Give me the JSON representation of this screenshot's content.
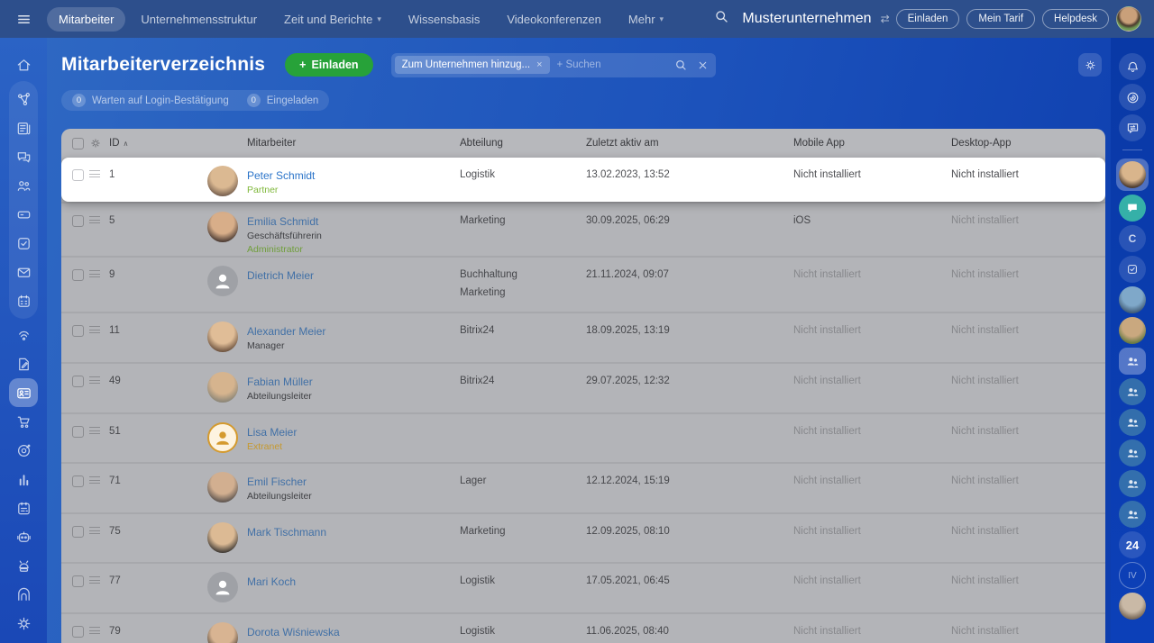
{
  "topbar": {
    "menu_items": [
      {
        "label": "Mitarbeiter",
        "active": true,
        "chevron": false
      },
      {
        "label": "Unternehmensstruktur",
        "active": false,
        "chevron": false
      },
      {
        "label": "Zeit und Berichte",
        "active": false,
        "chevron": true
      },
      {
        "label": "Wissensbasis",
        "active": false,
        "chevron": false
      },
      {
        "label": "Videokonferenzen",
        "active": false,
        "chevron": false
      },
      {
        "label": "Mehr",
        "active": false,
        "chevron": true
      }
    ],
    "company": "Musterunternehmen",
    "actions": [
      "Einladen",
      "Mein Tarif",
      "Helpdesk"
    ]
  },
  "header": {
    "title": "Mitarbeiterverzeichnis",
    "invite_button": "Einladen",
    "invite_plus": "+",
    "filter_chip": "Zum Unternehmen hinzug...",
    "chip_close": "×",
    "search_placeholder": "+ Suchen"
  },
  "counters": [
    {
      "count": "0",
      "label": "Warten auf Login-Bestätigung"
    },
    {
      "count": "0",
      "label": "Eingeladen"
    }
  ],
  "table": {
    "columns": {
      "id": "ID",
      "person": "Mitarbeiter",
      "department": "Abteilung",
      "last_active": "Zuletzt aktiv am",
      "mobile": "Mobile App",
      "desktop": "Desktop-App"
    },
    "sort_indicator": "∧",
    "rows": [
      {
        "id": "1",
        "name": "Peter Schmidt",
        "role": "",
        "badge": "Partner",
        "badge_color": "#7fb73a",
        "departments": [
          "Logistik"
        ],
        "last_active": "13.02.2023, 13:52",
        "mobile": "Nicht installiert",
        "desktop": "Nicht installiert",
        "avatar": {
          "type": "photo",
          "c1": "#dbb992",
          "c2": "#77604f"
        },
        "highlighted": true
      },
      {
        "id": "5",
        "name": "Emilia Schmidt",
        "role": "Geschäftsführerin",
        "badge": "Administrator",
        "badge_color": "#6f9e3a",
        "departments": [
          "Marketing"
        ],
        "last_active": "30.09.2025, 06:29",
        "mobile": "iOS",
        "desktop": "Nicht installiert",
        "avatar": {
          "type": "photo",
          "c1": "#d8ae89",
          "c2": "#4a3a33"
        },
        "highlighted": false
      },
      {
        "id": "9",
        "name": "Dietrich Meier",
        "role": "",
        "badge": "",
        "badge_color": "",
        "departments": [
          "Buchhaltung",
          "Marketing"
        ],
        "last_active": "21.11.2024, 09:07",
        "mobile": "Nicht installiert",
        "desktop": "Nicht installiert",
        "avatar": {
          "type": "placeholder"
        },
        "highlighted": false
      },
      {
        "id": "11",
        "name": "Alexander Meier",
        "role": "Manager",
        "badge": "",
        "badge_color": "",
        "departments": [
          "Bitrix24"
        ],
        "last_active": "18.09.2025, 13:19",
        "mobile": "Nicht installiert",
        "desktop": "Nicht installiert",
        "avatar": {
          "type": "photo",
          "c1": "#e0bd97",
          "c2": "#6d533f"
        },
        "highlighted": false
      },
      {
        "id": "49",
        "name": "Fabian Müller",
        "role": "Abteilungsleiter",
        "badge": "",
        "badge_color": "",
        "departments": [
          "Bitrix24"
        ],
        "last_active": "29.07.2025, 12:32",
        "mobile": "Nicht installiert",
        "desktop": "Nicht installiert",
        "avatar": {
          "type": "photo",
          "c1": "#d6b48e",
          "c2": "#8a8577"
        },
        "highlighted": false
      },
      {
        "id": "51",
        "name": "Lisa Meier",
        "role": "",
        "badge": "Extranet",
        "badge_color": "#c6992f",
        "departments": [],
        "last_active": "",
        "mobile": "Nicht installiert",
        "desktop": "Nicht installiert",
        "avatar": {
          "type": "extranet"
        },
        "highlighted": false
      },
      {
        "id": "71",
        "name": "Emil Fischer",
        "role": "Abteilungsleiter",
        "badge": "",
        "badge_color": "",
        "departments": [
          "Lager"
        ],
        "last_active": "12.12.2024, 15:19",
        "mobile": "Nicht installiert",
        "desktop": "Nicht installiert",
        "avatar": {
          "type": "photo",
          "c1": "#d2af90",
          "c2": "#5e5550"
        },
        "highlighted": false
      },
      {
        "id": "75",
        "name": "Mark Tischmann",
        "role": "",
        "badge": "",
        "badge_color": "",
        "departments": [
          "Marketing"
        ],
        "last_active": "12.09.2025, 08:10",
        "mobile": "Nicht installiert",
        "desktop": "Nicht installiert",
        "avatar": {
          "type": "photo",
          "c1": "#dcba94",
          "c2": "#3f3a35"
        },
        "highlighted": false
      },
      {
        "id": "77",
        "name": "Mari Koch",
        "role": "",
        "badge": "",
        "badge_color": "",
        "departments": [
          "Logistik"
        ],
        "last_active": "17.05.2021, 06:45",
        "mobile": "Nicht installiert",
        "desktop": "Nicht installiert",
        "avatar": {
          "type": "placeholder"
        },
        "highlighted": false
      },
      {
        "id": "79",
        "name": "Dorota Wiśniewska",
        "role": "",
        "badge": "",
        "badge_color": "",
        "departments": [
          "Logistik"
        ],
        "last_active": "11.06.2025, 08:40",
        "mobile": "Nicht installiert",
        "desktop": "Nicht installiert",
        "avatar": {
          "type": "photo",
          "c1": "#d8b492",
          "c2": "#514438"
        },
        "highlighted": false
      }
    ]
  },
  "left_rail": {
    "icons": [
      "home",
      "network",
      "news",
      "chat",
      "people",
      "drive",
      "tasks",
      "mail",
      "calendar",
      "broadcast",
      "document-sign",
      "id-card",
      "cart",
      "crm-target",
      "chart",
      "planner",
      "robot",
      "android",
      "storage",
      "settings"
    ],
    "group_range": [
      1,
      8
    ],
    "active": "id-card"
  },
  "right_rail": {
    "items": [
      {
        "type": "icon",
        "name": "notifications-bell-icon"
      },
      {
        "type": "icon",
        "name": "copilot-icon"
      },
      {
        "type": "icon",
        "name": "messenger-icon"
      },
      {
        "type": "divider",
        "name": "divider"
      },
      {
        "type": "avatar-active",
        "name": "recent-chat-avatar",
        "c1": "#d9b58c",
        "c2": "#4e3d31"
      },
      {
        "type": "chat-teal",
        "name": "chat-bubble-icon"
      },
      {
        "type": "letter",
        "name": "chat-letter",
        "label": "C"
      },
      {
        "type": "check",
        "name": "tasks-chat-icon"
      },
      {
        "type": "photo",
        "name": "chat-avatar",
        "c1": "#7fa8c9",
        "c2": "#44607a"
      },
      {
        "type": "photo",
        "name": "chat-avatar",
        "c1": "#c9a87f",
        "c2": "#6a7a44"
      },
      {
        "type": "group-square",
        "name": "group-chat-icon"
      },
      {
        "type": "group",
        "name": "group-chat-icon"
      },
      {
        "type": "group",
        "name": "group-chat-icon"
      },
      {
        "type": "group",
        "name": "group-chat-icon"
      },
      {
        "type": "group",
        "name": "group-chat-icon"
      },
      {
        "type": "group",
        "name": "group-chat-icon"
      },
      {
        "type": "badge24",
        "name": "support-24-badge",
        "label": "24"
      },
      {
        "type": "ring",
        "name": "initials-badge",
        "label": "IV"
      },
      {
        "type": "photo",
        "name": "cat-avatar",
        "c1": "#c9b9a6",
        "c2": "#7a6a5a"
      }
    ]
  },
  "colors": {
    "topbar": "#2d4f8c",
    "accent_green": "#27a239",
    "table_dim_bg": "#b3b4b8",
    "header_bg": "#b7b8bc",
    "link_blue": "#2b74c9",
    "badge_green": "#7fb73a",
    "badge_orange": "#c6992f"
  }
}
